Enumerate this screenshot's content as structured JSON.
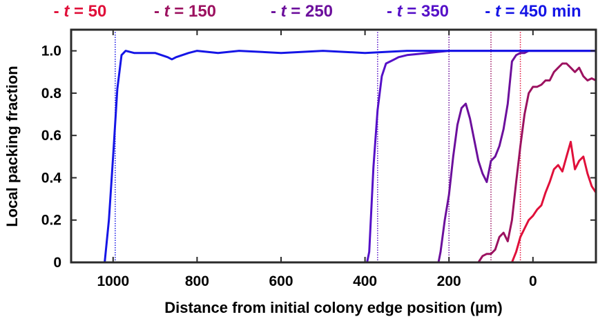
{
  "chart_data": {
    "type": "line",
    "xlabel": "Distance from initial colony edge  position (µm)",
    "ylabel": "Local packing fraction",
    "xlim": [
      1100,
      -150
    ],
    "ylim": [
      0,
      1.1
    ],
    "x_reversed": true,
    "x_ticks": [
      1000,
      800,
      600,
      400,
      200,
      0
    ],
    "x_tick_labels": [
      "1000",
      "800",
      "600",
      "400",
      "200",
      "0"
    ],
    "y_ticks": [
      0,
      0.2,
      0.4,
      0.6,
      0.8,
      1.0
    ],
    "y_tick_labels": [
      "0",
      "0.2",
      "0.4",
      "0.6",
      "0.8",
      "1.0"
    ],
    "grid": false,
    "legend_position": "top",
    "series": [
      {
        "name": "t = 50",
        "legend_prefix": "- ",
        "legend_t": "t",
        "legend_rest": " = 50",
        "color": "#e0103a",
        "front": 30,
        "x": [
          1100,
          50,
          40,
          30,
          20,
          10,
          0,
          -10,
          -20,
          -30,
          -40,
          -50,
          -60,
          -70,
          -80,
          -90,
          -100,
          -110,
          -120,
          -130,
          -140,
          -150
        ],
        "y": [
          0,
          0,
          0.05,
          0.12,
          0.16,
          0.2,
          0.22,
          0.25,
          0.27,
          0.33,
          0.38,
          0.44,
          0.46,
          0.43,
          0.5,
          0.57,
          0.44,
          0.48,
          0.5,
          0.42,
          0.36,
          0.33
        ]
      },
      {
        "name": "t = 150",
        "legend_prefix": "- ",
        "legend_t": "t",
        "legend_rest": " = 150",
        "color": "#9c1260",
        "front": 100,
        "x": [
          1100,
          130,
          120,
          110,
          100,
          90,
          80,
          70,
          60,
          50,
          40,
          30,
          20,
          10,
          0,
          -10,
          -20,
          -30,
          -40,
          -50,
          -60,
          -70,
          -80,
          -90,
          -100,
          -110,
          -120,
          -130,
          -140,
          -150
        ],
        "y": [
          0,
          0,
          0.03,
          0.04,
          0.04,
          0.06,
          0.12,
          0.14,
          0.1,
          0.2,
          0.38,
          0.55,
          0.7,
          0.8,
          0.83,
          0.83,
          0.84,
          0.86,
          0.86,
          0.9,
          0.92,
          0.94,
          0.94,
          0.92,
          0.9,
          0.92,
          0.88,
          0.86,
          0.87,
          0.86
        ]
      },
      {
        "name": "t = 250",
        "legend_prefix": "- ",
        "legend_t": "t",
        "legend_rest": " = 250",
        "color": "#6c0f9c",
        "front": 200,
        "x": [
          1100,
          225,
          220,
          210,
          200,
          190,
          180,
          170,
          160,
          150,
          140,
          130,
          120,
          110,
          100,
          90,
          80,
          70,
          60,
          50,
          40,
          30,
          20,
          10,
          0,
          -150
        ],
        "y": [
          0,
          0,
          0.05,
          0.2,
          0.32,
          0.5,
          0.65,
          0.73,
          0.75,
          0.68,
          0.58,
          0.48,
          0.42,
          0.38,
          0.48,
          0.5,
          0.55,
          0.63,
          0.75,
          0.95,
          0.98,
          0.99,
          0.99,
          1.0,
          1.0,
          1.0
        ]
      },
      {
        "name": "t = 350",
        "legend_prefix": "- ",
        "legend_t": "t",
        "legend_rest": " = 350",
        "color": "#5510c8",
        "front": 370,
        "x": [
          1100,
          395,
          390,
          380,
          370,
          360,
          350,
          340,
          330,
          320,
          300,
          250,
          200,
          150,
          100,
          50,
          0,
          -150
        ],
        "y": [
          0,
          0,
          0.05,
          0.45,
          0.72,
          0.88,
          0.94,
          0.95,
          0.96,
          0.97,
          0.98,
          0.99,
          1.0,
          1.0,
          1.0,
          1.0,
          1.0,
          1.0
        ]
      },
      {
        "name": "t = 450 min",
        "legend_prefix": "- ",
        "legend_t": "t",
        "legend_rest": " = 450 min",
        "color": "#1515e6",
        "front": 995,
        "x": [
          1100,
          1020,
          1010,
          1000,
          990,
          980,
          970,
          950,
          900,
          870,
          860,
          850,
          820,
          800,
          750,
          700,
          600,
          500,
          400,
          300,
          200,
          100,
          0,
          -150
        ],
        "y": [
          0,
          0,
          0.2,
          0.5,
          0.82,
          0.98,
          1.0,
          0.99,
          0.99,
          0.97,
          0.96,
          0.97,
          0.99,
          1.0,
          0.99,
          1.0,
          0.99,
          1.0,
          0.99,
          1.0,
          1.0,
          1.0,
          1.0,
          1.0
        ]
      }
    ]
  }
}
